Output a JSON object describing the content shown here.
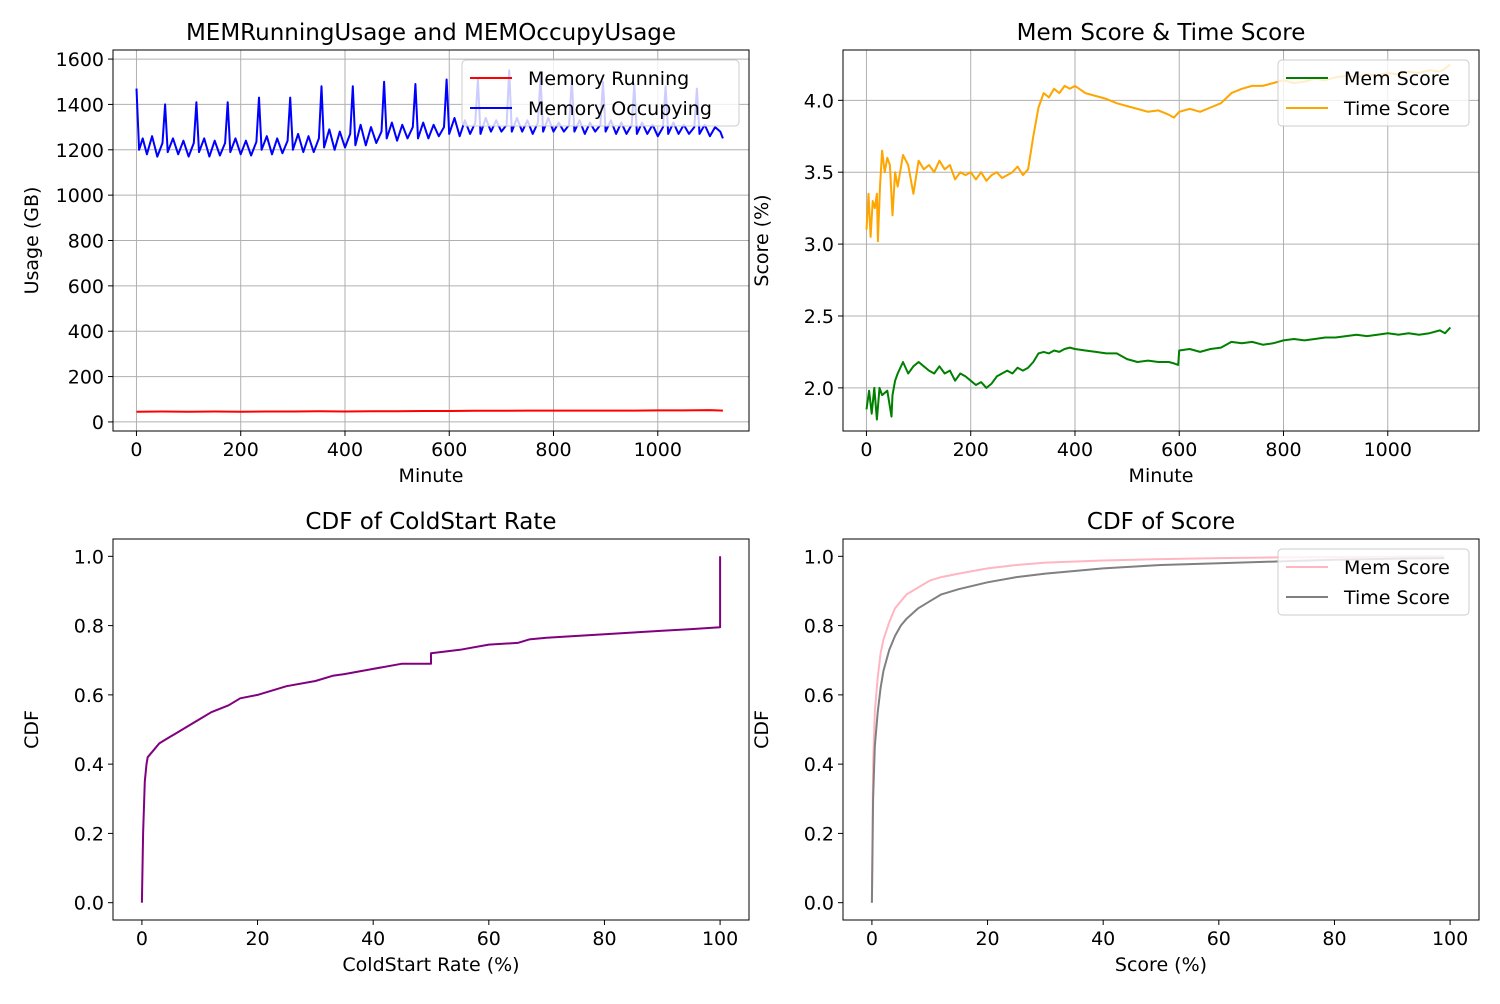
{
  "chart_data": [
    {
      "type": "line",
      "title": "MEMRunningUsage and MEMOccupyUsage",
      "xlabel": "Minute",
      "ylabel": "Usage (GB)",
      "xlim": [
        -45,
        1175
      ],
      "ylim": [
        -40,
        1640
      ],
      "xticks": [
        0,
        200,
        400,
        600,
        800,
        1000
      ],
      "yticks": [
        0,
        200,
        400,
        600,
        800,
        1000,
        1200,
        1400,
        1600
      ],
      "grid": true,
      "legend": "top-right",
      "series": [
        {
          "name": "Memory Running",
          "color": "#ff0000",
          "x": [
            0,
            50,
            100,
            150,
            200,
            250,
            300,
            350,
            400,
            450,
            500,
            550,
            600,
            650,
            700,
            750,
            800,
            850,
            900,
            950,
            1000,
            1050,
            1100,
            1125
          ],
          "y": [
            45,
            46,
            45,
            46,
            45,
            46,
            46,
            47,
            46,
            47,
            47,
            48,
            48,
            49,
            49,
            50,
            50,
            50,
            50,
            50,
            51,
            51,
            52,
            50
          ]
        },
        {
          "name": "Memory Occupying",
          "color": "#0000ff",
          "x": [
            0,
            5,
            12,
            20,
            30,
            40,
            50,
            55,
            60,
            70,
            80,
            90,
            100,
            110,
            115,
            120,
            130,
            140,
            150,
            160,
            170,
            175,
            180,
            190,
            200,
            210,
            220,
            230,
            235,
            240,
            250,
            260,
            270,
            280,
            290,
            295,
            300,
            310,
            320,
            330,
            340,
            350,
            355,
            360,
            370,
            380,
            390,
            400,
            410,
            415,
            420,
            430,
            440,
            450,
            460,
            470,
            475,
            480,
            490,
            500,
            510,
            520,
            530,
            535,
            540,
            550,
            560,
            570,
            580,
            590,
            595,
            600,
            610,
            620,
            630,
            640,
            650,
            655,
            660,
            670,
            680,
            690,
            700,
            710,
            715,
            720,
            730,
            740,
            750,
            760,
            770,
            775,
            780,
            790,
            800,
            810,
            820,
            830,
            835,
            840,
            850,
            860,
            870,
            880,
            890,
            895,
            900,
            910,
            920,
            930,
            940,
            950,
            955,
            960,
            970,
            980,
            990,
            1000,
            1010,
            1015,
            1020,
            1030,
            1040,
            1050,
            1060,
            1070,
            1075,
            1080,
            1090,
            1100,
            1110,
            1120,
            1125
          ],
          "y": [
            1470,
            1200,
            1250,
            1180,
            1260,
            1170,
            1230,
            1400,
            1190,
            1250,
            1180,
            1240,
            1170,
            1230,
            1410,
            1190,
            1250,
            1170,
            1240,
            1175,
            1230,
            1410,
            1190,
            1250,
            1180,
            1240,
            1175,
            1235,
            1430,
            1200,
            1260,
            1180,
            1250,
            1185,
            1240,
            1430,
            1200,
            1270,
            1190,
            1260,
            1190,
            1250,
            1480,
            1210,
            1290,
            1200,
            1280,
            1210,
            1270,
            1480,
            1220,
            1310,
            1220,
            1300,
            1230,
            1280,
            1500,
            1250,
            1320,
            1240,
            1310,
            1250,
            1300,
            1490,
            1250,
            1320,
            1250,
            1310,
            1260,
            1300,
            1510,
            1270,
            1340,
            1260,
            1330,
            1270,
            1320,
            1510,
            1270,
            1340,
            1280,
            1330,
            1280,
            1310,
            1550,
            1280,
            1340,
            1280,
            1330,
            1270,
            1320,
            1520,
            1280,
            1340,
            1280,
            1320,
            1280,
            1310,
            1510,
            1280,
            1330,
            1270,
            1320,
            1280,
            1310,
            1500,
            1280,
            1330,
            1270,
            1320,
            1270,
            1310,
            1490,
            1270,
            1320,
            1270,
            1310,
            1260,
            1300,
            1480,
            1270,
            1320,
            1270,
            1310,
            1270,
            1300,
            1470,
            1270,
            1310,
            1260,
            1300,
            1280,
            1250
          ]
        }
      ]
    },
    {
      "type": "line",
      "title": "Mem Score & Time Score",
      "xlabel": "Minute",
      "ylabel": "Score (%)",
      "xlim": [
        -45,
        1175
      ],
      "ylim": [
        1.7,
        4.35
      ],
      "xticks": [
        0,
        200,
        400,
        600,
        800,
        1000
      ],
      "yticks": [
        2.0,
        2.5,
        3.0,
        3.5,
        4.0
      ],
      "ytick_labels": [
        "2.0",
        "2.5",
        "3.0",
        "3.5",
        "4.0"
      ],
      "grid": true,
      "legend": "top-right",
      "series": [
        {
          "name": "Mem Score",
          "color": "#008000",
          "x": [
            0,
            5,
            10,
            15,
            20,
            25,
            30,
            40,
            48,
            50,
            55,
            60,
            70,
            80,
            90,
            100,
            110,
            120,
            130,
            140,
            150,
            160,
            170,
            180,
            190,
            200,
            210,
            220,
            230,
            240,
            250,
            260,
            270,
            280,
            290,
            300,
            310,
            320,
            330,
            340,
            350,
            360,
            370,
            380,
            390,
            400,
            420,
            440,
            460,
            480,
            500,
            520,
            540,
            560,
            580,
            590,
            598,
            600,
            620,
            640,
            660,
            680,
            700,
            720,
            740,
            760,
            780,
            800,
            820,
            840,
            860,
            880,
            900,
            920,
            940,
            960,
            980,
            1000,
            1020,
            1040,
            1060,
            1080,
            1100,
            1110,
            1120
          ],
          "y": [
            1.85,
            1.98,
            1.82,
            2.0,
            1.78,
            2.0,
            1.95,
            1.98,
            1.8,
            1.95,
            2.05,
            2.1,
            2.18,
            2.1,
            2.15,
            2.18,
            2.15,
            2.12,
            2.1,
            2.15,
            2.1,
            2.12,
            2.05,
            2.1,
            2.08,
            2.05,
            2.02,
            2.04,
            2.0,
            2.03,
            2.08,
            2.1,
            2.12,
            2.1,
            2.14,
            2.12,
            2.14,
            2.18,
            2.24,
            2.25,
            2.24,
            2.26,
            2.25,
            2.27,
            2.28,
            2.27,
            2.26,
            2.25,
            2.24,
            2.24,
            2.2,
            2.18,
            2.19,
            2.18,
            2.18,
            2.17,
            2.16,
            2.26,
            2.27,
            2.25,
            2.27,
            2.28,
            2.32,
            2.31,
            2.32,
            2.3,
            2.31,
            2.33,
            2.34,
            2.33,
            2.34,
            2.35,
            2.35,
            2.36,
            2.37,
            2.36,
            2.37,
            2.38,
            2.37,
            2.38,
            2.37,
            2.38,
            2.4,
            2.38,
            2.42
          ]
        },
        {
          "name": "Time Score",
          "color": "#ffa500",
          "x": [
            0,
            4,
            8,
            12,
            16,
            20,
            22,
            26,
            30,
            35,
            40,
            45,
            50,
            55,
            60,
            70,
            80,
            90,
            100,
            110,
            120,
            130,
            140,
            150,
            160,
            170,
            180,
            190,
            200,
            210,
            220,
            230,
            240,
            250,
            260,
            270,
            280,
            290,
            300,
            305,
            310,
            320,
            330,
            340,
            350,
            360,
            370,
            380,
            390,
            400,
            420,
            440,
            460,
            480,
            500,
            520,
            540,
            560,
            580,
            590,
            600,
            620,
            640,
            660,
            680,
            700,
            720,
            740,
            760,
            780,
            800,
            820,
            840,
            860,
            880,
            900,
            920,
            940,
            960,
            980,
            1000,
            1020,
            1040,
            1060,
            1080,
            1100,
            1110,
            1120
          ],
          "y": [
            3.1,
            3.35,
            3.05,
            3.3,
            3.25,
            3.35,
            3.02,
            3.4,
            3.65,
            3.5,
            3.6,
            3.55,
            3.2,
            3.5,
            3.4,
            3.62,
            3.55,
            3.35,
            3.58,
            3.52,
            3.55,
            3.5,
            3.58,
            3.52,
            3.55,
            3.45,
            3.5,
            3.48,
            3.5,
            3.45,
            3.5,
            3.44,
            3.48,
            3.5,
            3.46,
            3.48,
            3.5,
            3.54,
            3.48,
            3.5,
            3.52,
            3.75,
            3.95,
            4.05,
            4.02,
            4.08,
            4.05,
            4.1,
            4.08,
            4.1,
            4.05,
            4.03,
            4.01,
            3.98,
            3.96,
            3.94,
            3.92,
            3.93,
            3.9,
            3.88,
            3.92,
            3.94,
            3.92,
            3.95,
            3.98,
            4.05,
            4.08,
            4.1,
            4.1,
            4.12,
            4.14,
            4.12,
            4.13,
            4.15,
            4.14,
            4.16,
            4.17,
            4.16,
            4.18,
            4.17,
            4.19,
            4.18,
            4.2,
            4.19,
            4.21,
            4.2,
            4.22,
            4.25
          ]
        }
      ]
    },
    {
      "type": "line",
      "title": "CDF of ColdStart Rate",
      "xlabel": "ColdStart Rate (%)",
      "ylabel": "CDF",
      "xlim": [
        -5,
        105
      ],
      "ylim": [
        -0.05,
        1.05
      ],
      "xticks": [
        0,
        20,
        40,
        60,
        80,
        100
      ],
      "yticks": [
        0.0,
        0.2,
        0.4,
        0.6,
        0.8,
        1.0
      ],
      "ytick_labels": [
        "0.0",
        "0.2",
        "0.4",
        "0.6",
        "0.8",
        "1.0"
      ],
      "grid": false,
      "series": [
        {
          "name": "",
          "color": "#800080",
          "x": [
            0,
            0.2,
            0.5,
            0.8,
            1,
            2,
            3,
            4,
            5,
            6,
            8,
            10,
            12,
            15,
            17,
            20,
            25,
            30,
            33,
            35,
            40,
            45,
            50,
            50,
            55,
            60,
            65,
            67,
            70,
            75,
            80,
            85,
            90,
            95,
            100,
            100
          ],
          "y": [
            0.0,
            0.2,
            0.35,
            0.4,
            0.42,
            0.44,
            0.46,
            0.47,
            0.48,
            0.49,
            0.51,
            0.53,
            0.55,
            0.57,
            0.59,
            0.6,
            0.625,
            0.64,
            0.655,
            0.66,
            0.675,
            0.69,
            0.69,
            0.72,
            0.73,
            0.745,
            0.75,
            0.76,
            0.765,
            0.77,
            0.775,
            0.78,
            0.785,
            0.79,
            0.795,
            1.0
          ]
        }
      ]
    },
    {
      "type": "line",
      "title": "CDF of Score",
      "xlabel": "Score (%)",
      "ylabel": "CDF",
      "xlim": [
        -5,
        105
      ],
      "ylim": [
        -0.05,
        1.05
      ],
      "xticks": [
        0,
        20,
        40,
        60,
        80,
        100
      ],
      "yticks": [
        0.0,
        0.2,
        0.4,
        0.6,
        0.8,
        1.0
      ],
      "ytick_labels": [
        "0.0",
        "0.2",
        "0.4",
        "0.6",
        "0.8",
        "1.0"
      ],
      "grid": false,
      "legend": "top-right",
      "series": [
        {
          "name": "Mem Score",
          "color": "#ffb6c1",
          "x": [
            0,
            0.2,
            0.5,
            1,
            1.5,
            2,
            3,
            4,
            5,
            6,
            8,
            10,
            12,
            15,
            20,
            25,
            30,
            40,
            50,
            60,
            70,
            80,
            90,
            99
          ],
          "y": [
            0.0,
            0.4,
            0.55,
            0.65,
            0.72,
            0.76,
            0.81,
            0.85,
            0.87,
            0.89,
            0.91,
            0.93,
            0.94,
            0.95,
            0.965,
            0.975,
            0.982,
            0.988,
            0.992,
            0.995,
            0.997,
            0.998,
            0.999,
            1.0
          ]
        },
        {
          "name": "Time Score",
          "color": "#808080",
          "x": [
            0,
            0.2,
            0.5,
            1,
            1.5,
            2,
            3,
            4,
            5,
            6,
            8,
            10,
            12,
            15,
            20,
            25,
            30,
            40,
            50,
            60,
            70,
            80,
            90,
            99
          ],
          "y": [
            0.0,
            0.3,
            0.45,
            0.55,
            0.62,
            0.67,
            0.73,
            0.77,
            0.8,
            0.82,
            0.85,
            0.87,
            0.89,
            0.905,
            0.925,
            0.94,
            0.95,
            0.965,
            0.975,
            0.98,
            0.985,
            0.99,
            0.993,
            0.995
          ]
        }
      ]
    }
  ]
}
